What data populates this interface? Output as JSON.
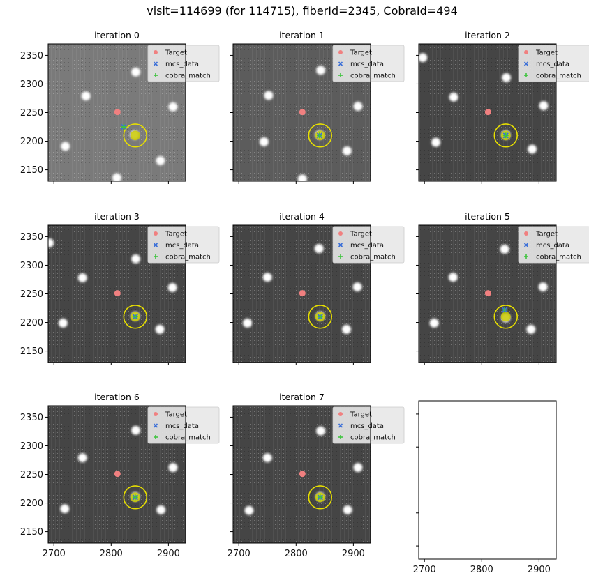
{
  "figure": {
    "title": "visit=114699 (for 114715), fiberId=2345, CobraId=494"
  },
  "legend": {
    "target_label": "Target",
    "mcs_label": "mcs_data",
    "match_label": "cobra_match"
  },
  "colors": {
    "target": "#f08080",
    "mcs": "#3b6fd8",
    "match": "#3ec43e",
    "circle": "#e8e000",
    "background": "#4a4a4a",
    "empty_panel": "#ffffff"
  },
  "chart_data": {
    "type": "scatter",
    "xlim": [
      2690,
      2930
    ],
    "ylim": [
      2130,
      2370
    ],
    "xticks": [
      2700,
      2800,
      2900
    ],
    "yticks": [
      2150,
      2200,
      2250,
      2300,
      2350
    ],
    "target": {
      "x": 2811,
      "y": 2251
    },
    "circle": {
      "x": 2842,
      "y": 2210,
      "radius": 20
    },
    "panels": [
      {
        "title": "iteration 0",
        "bg": "#7a7a7a",
        "mcs": {
          "x": 2822,
          "y": 2225
        },
        "match": {
          "x": 2822,
          "y": 2225
        },
        "spots": [
          [
            2843,
            2321
          ],
          [
            2756,
            2279
          ],
          [
            2908,
            2260
          ],
          [
            2720,
            2191
          ],
          [
            2886,
            2166
          ],
          [
            2810,
            2136
          ],
          [
            2841,
            2211
          ]
        ]
      },
      {
        "title": "iteration 1",
        "bg": "#5c5c5c",
        "mcs": {
          "x": 2841,
          "y": 2210
        },
        "match": {
          "x": 2841,
          "y": 2210
        },
        "spots": [
          [
            2843,
            2324
          ],
          [
            2752,
            2280
          ],
          [
            2908,
            2261
          ],
          [
            2744,
            2199
          ],
          [
            2889,
            2183
          ],
          [
            2811,
            2134
          ],
          [
            2841,
            2211
          ]
        ]
      },
      {
        "title": "iteration 2",
        "bg": "#454545",
        "mcs": {
          "x": 2842,
          "y": 2210
        },
        "match": {
          "x": 2842,
          "y": 2210
        },
        "spots": [
          [
            2697,
            2346
          ],
          [
            2843,
            2311
          ],
          [
            2751,
            2277
          ],
          [
            2908,
            2262
          ],
          [
            2720,
            2198
          ],
          [
            2888,
            2186
          ],
          [
            2842,
            2211
          ]
        ]
      },
      {
        "title": "iteration 3",
        "bg": "#454545",
        "mcs": {
          "x": 2842,
          "y": 2210
        },
        "match": {
          "x": 2842,
          "y": 2210
        },
        "spots": [
          [
            2692,
            2339
          ],
          [
            2843,
            2311
          ],
          [
            2750,
            2278
          ],
          [
            2907,
            2261
          ],
          [
            2716,
            2199
          ],
          [
            2885,
            2188
          ],
          [
            2842,
            2211
          ]
        ]
      },
      {
        "title": "iteration 4",
        "bg": "#454545",
        "mcs": {
          "x": 2842,
          "y": 2210
        },
        "match": {
          "x": 2842,
          "y": 2210
        },
        "spots": [
          [
            2840,
            2329
          ],
          [
            2750,
            2279
          ],
          [
            2907,
            2262
          ],
          [
            2715,
            2199
          ],
          [
            2888,
            2188
          ],
          [
            2842,
            2211
          ]
        ]
      },
      {
        "title": "iteration 5",
        "bg": "#454545",
        "mcs": {
          "x": 2840,
          "y": 2222
        },
        "match": {
          "x": 2840,
          "y": 2222
        },
        "spots": [
          [
            2840,
            2328
          ],
          [
            2750,
            2279
          ],
          [
            2907,
            2262
          ],
          [
            2717,
            2199
          ],
          [
            2886,
            2188
          ],
          [
            2842,
            2208
          ]
        ]
      },
      {
        "title": "iteration 6",
        "bg": "#454545",
        "mcs": {
          "x": 2842,
          "y": 2210
        },
        "match": {
          "x": 2842,
          "y": 2210
        },
        "spots": [
          [
            2843,
            2327
          ],
          [
            2750,
            2279
          ],
          [
            2908,
            2262
          ],
          [
            2719,
            2190
          ],
          [
            2887,
            2188
          ],
          [
            2842,
            2211
          ]
        ]
      },
      {
        "title": "iteration 7",
        "bg": "#454545",
        "mcs": {
          "x": 2842,
          "y": 2210
        },
        "match": {
          "x": 2842,
          "y": 2210
        },
        "spots": [
          [
            2843,
            2326
          ],
          [
            2750,
            2279
          ],
          [
            2908,
            2262
          ],
          [
            2718,
            2187
          ],
          [
            2890,
            2188
          ],
          [
            2842,
            2211
          ]
        ]
      }
    ]
  }
}
